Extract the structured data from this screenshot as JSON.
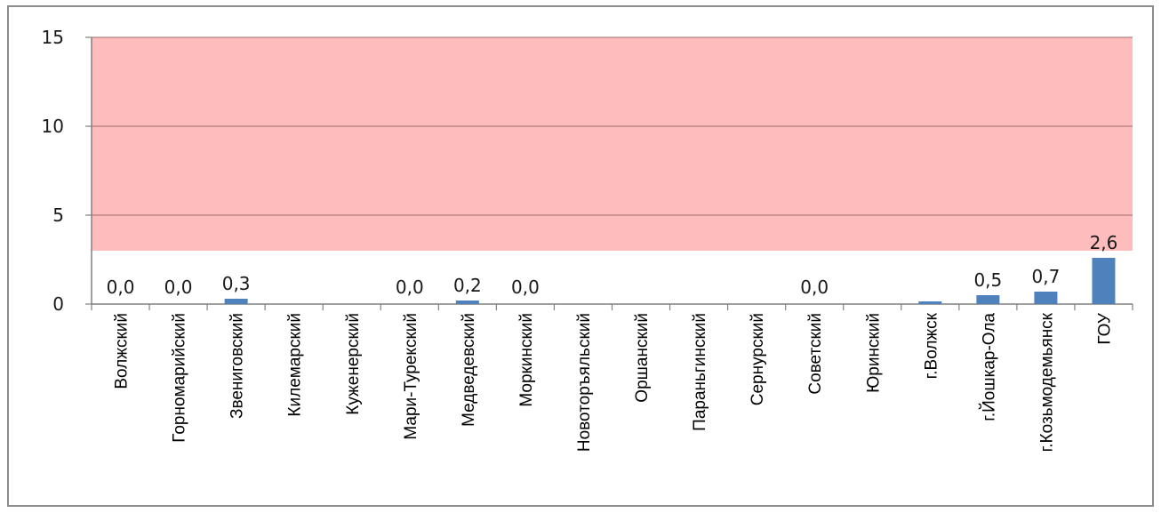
{
  "chart_data": {
    "type": "bar",
    "categories": [
      "Волжский",
      "Горномарийский",
      "Звениговский",
      "Килемарский",
      "Куженерский",
      "Мари-Турекский",
      "Медведевский",
      "Моркинский",
      "Новоторъяльский",
      "Оршанский",
      "Параньгинский",
      "Сернурский",
      "Советский",
      "Юринский",
      "г.Волжск",
      "г.Йошкар-Ола",
      "г.Козьмодемьянск",
      "ГОУ"
    ],
    "values": [
      0.0,
      0.0,
      0.3,
      0,
      0,
      0.0,
      0.2,
      0.0,
      0,
      0,
      0,
      0,
      0.0,
      0,
      0.15,
      0.5,
      0.7,
      2.6
    ],
    "data_labels": [
      "0,0",
      "0,0",
      "0,3",
      "",
      "",
      "0,0",
      "0,2",
      "0,0",
      "",
      "",
      "",
      "",
      "0,0",
      "",
      "",
      "0,5",
      "0,7",
      "2,6"
    ],
    "ylim": [
      0,
      15
    ],
    "yticks": [
      "0",
      "5",
      "10",
      "15"
    ],
    "threshold_band": [
      3,
      15
    ],
    "grid": true,
    "colors": {
      "bar": "#4f81bd",
      "band": "#ffbcbc",
      "grid": "#7f7f7f"
    }
  }
}
